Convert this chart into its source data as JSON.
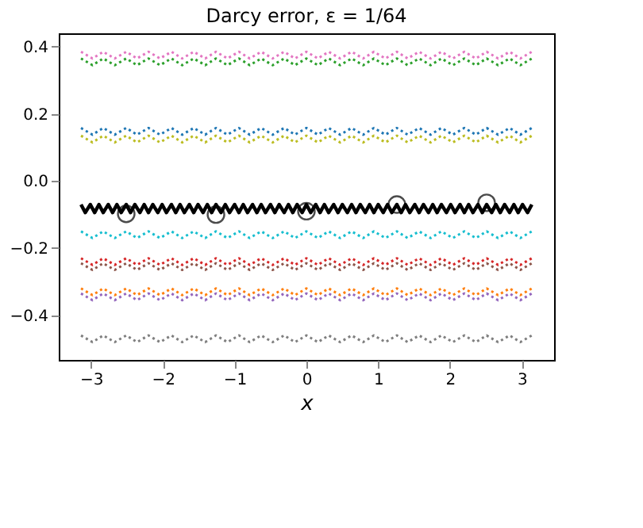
{
  "chart_data": {
    "type": "line",
    "title": "Darcy error, ε = 1/64",
    "xlabel": "x",
    "xlim": [
      -3.45,
      3.45
    ],
    "ylim": [
      -0.533,
      0.44
    ],
    "xticks": [
      {
        "value": -3,
        "label": "−3"
      },
      {
        "value": -2,
        "label": "−2"
      },
      {
        "value": -1,
        "label": "−1"
      },
      0,
      1,
      2,
      3
    ],
    "yticks": [
      {
        "value": -0.4,
        "label": "−0.4"
      },
      {
        "value": -0.2,
        "label": "−0.2"
      },
      {
        "value": 0,
        "label": "0.0"
      },
      0.2,
      0.4
    ],
    "x": [
      -3.14,
      -2.98,
      -2.83,
      -2.67,
      -2.51,
      -2.36,
      -2.2,
      -2.04,
      -1.88,
      -1.73,
      -1.57,
      -1.41,
      -1.26,
      -1.1,
      -0.94,
      -0.79,
      -0.63,
      -0.47,
      -0.31,
      -0.16,
      0,
      0.16,
      0.31,
      0.47,
      0.63,
      0.79,
      0.94,
      1.1,
      1.26,
      1.41,
      1.57,
      1.73,
      1.88,
      2.04,
      2.2,
      2.36,
      2.51,
      2.67,
      2.83,
      2.98,
      3.14
    ],
    "series": [
      {
        "color": "#e377c2",
        "line_style": "dotted",
        "values": [
          0.385,
          0.365,
          0.385,
          0.365,
          0.385,
          0.365,
          0.385,
          0.365,
          0.385,
          0.365,
          0.385,
          0.365,
          0.385,
          0.365,
          0.385,
          0.365,
          0.385,
          0.365,
          0.385,
          0.365,
          0.385,
          0.365,
          0.385,
          0.365,
          0.385,
          0.365,
          0.385,
          0.365,
          0.385,
          0.365,
          0.385,
          0.365,
          0.385,
          0.365,
          0.385,
          0.365,
          0.385,
          0.365,
          0.385,
          0.365,
          0.385
        ]
      },
      {
        "color": "#2ca02c",
        "line_style": "dotted",
        "values": [
          0.365,
          0.345,
          0.365,
          0.345,
          0.365,
          0.345,
          0.365,
          0.345,
          0.365,
          0.345,
          0.365,
          0.345,
          0.365,
          0.345,
          0.365,
          0.345,
          0.365,
          0.345,
          0.365,
          0.345,
          0.365,
          0.345,
          0.365,
          0.345,
          0.365,
          0.345,
          0.365,
          0.345,
          0.365,
          0.345,
          0.365,
          0.345,
          0.365,
          0.345,
          0.365,
          0.345,
          0.365,
          0.345,
          0.365,
          0.345,
          0.365
        ]
      },
      {
        "color": "#1f77b4",
        "line_style": "dotted",
        "values": [
          0.158,
          0.138,
          0.158,
          0.138,
          0.158,
          0.138,
          0.158,
          0.138,
          0.158,
          0.138,
          0.158,
          0.138,
          0.158,
          0.138,
          0.158,
          0.138,
          0.158,
          0.138,
          0.158,
          0.138,
          0.158,
          0.138,
          0.158,
          0.138,
          0.158,
          0.138,
          0.158,
          0.138,
          0.158,
          0.138,
          0.158,
          0.138,
          0.158,
          0.138,
          0.158,
          0.138,
          0.158,
          0.138,
          0.158,
          0.138,
          0.158
        ]
      },
      {
        "color": "#bcbd22",
        "line_style": "dotted",
        "values": [
          0.135,
          0.115,
          0.135,
          0.115,
          0.135,
          0.115,
          0.135,
          0.115,
          0.135,
          0.115,
          0.135,
          0.115,
          0.135,
          0.115,
          0.135,
          0.115,
          0.135,
          0.115,
          0.135,
          0.115,
          0.135,
          0.115,
          0.135,
          0.115,
          0.135,
          0.115,
          0.135,
          0.115,
          0.135,
          0.115,
          0.135,
          0.115,
          0.135,
          0.115,
          0.135,
          0.115,
          0.135,
          0.115,
          0.135,
          0.115,
          0.135
        ]
      },
      {
        "color": "#17becf",
        "line_style": "dotted",
        "values": [
          -0.15,
          -0.17,
          -0.15,
          -0.17,
          -0.15,
          -0.17,
          -0.15,
          -0.17,
          -0.15,
          -0.17,
          -0.15,
          -0.17,
          -0.15,
          -0.17,
          -0.15,
          -0.17,
          -0.15,
          -0.17,
          -0.15,
          -0.17,
          -0.15,
          -0.17,
          -0.15,
          -0.17,
          -0.15,
          -0.17,
          -0.15,
          -0.17,
          -0.15,
          -0.17,
          -0.15,
          -0.17,
          -0.15,
          -0.17,
          -0.15,
          -0.17,
          -0.15,
          -0.17,
          -0.15,
          -0.17,
          -0.15
        ]
      },
      {
        "color": "#d62728",
        "line_style": "dotted",
        "values": [
          -0.23,
          -0.25,
          -0.23,
          -0.25,
          -0.23,
          -0.25,
          -0.23,
          -0.25,
          -0.23,
          -0.25,
          -0.23,
          -0.25,
          -0.23,
          -0.25,
          -0.23,
          -0.25,
          -0.23,
          -0.25,
          -0.23,
          -0.25,
          -0.23,
          -0.25,
          -0.23,
          -0.25,
          -0.23,
          -0.25,
          -0.23,
          -0.25,
          -0.23,
          -0.25,
          -0.23,
          -0.25,
          -0.23,
          -0.25,
          -0.23,
          -0.25,
          -0.23,
          -0.25,
          -0.23,
          -0.25,
          -0.23
        ]
      },
      {
        "color": "#8c564b",
        "line_style": "dotted",
        "values": [
          -0.245,
          -0.265,
          -0.245,
          -0.265,
          -0.245,
          -0.265,
          -0.245,
          -0.265,
          -0.245,
          -0.265,
          -0.245,
          -0.265,
          -0.245,
          -0.265,
          -0.245,
          -0.265,
          -0.245,
          -0.265,
          -0.245,
          -0.265,
          -0.245,
          -0.265,
          -0.245,
          -0.265,
          -0.245,
          -0.265,
          -0.245,
          -0.265,
          -0.245,
          -0.265,
          -0.245,
          -0.265,
          -0.245,
          -0.265,
          -0.245,
          -0.265,
          -0.245,
          -0.265,
          -0.245,
          -0.265,
          -0.245
        ]
      },
      {
        "color": "#ff7f0e",
        "line_style": "dotted",
        "values": [
          -0.32,
          -0.34,
          -0.32,
          -0.34,
          -0.32,
          -0.34,
          -0.32,
          -0.34,
          -0.32,
          -0.34,
          -0.32,
          -0.34,
          -0.32,
          -0.34,
          -0.32,
          -0.34,
          -0.32,
          -0.34,
          -0.32,
          -0.34,
          -0.32,
          -0.34,
          -0.32,
          -0.34,
          -0.32,
          -0.34,
          -0.32,
          -0.34,
          -0.32,
          -0.34,
          -0.32,
          -0.34,
          -0.32,
          -0.34,
          -0.32,
          -0.34,
          -0.32,
          -0.34,
          -0.32,
          -0.34,
          -0.32
        ]
      },
      {
        "color": "#9467bd",
        "line_style": "dotted",
        "values": [
          -0.335,
          -0.355,
          -0.335,
          -0.355,
          -0.335,
          -0.355,
          -0.335,
          -0.355,
          -0.335,
          -0.355,
          -0.335,
          -0.355,
          -0.335,
          -0.355,
          -0.335,
          -0.355,
          -0.335,
          -0.355,
          -0.335,
          -0.355,
          -0.335,
          -0.355,
          -0.335,
          -0.355,
          -0.335,
          -0.355,
          -0.335,
          -0.355,
          -0.335,
          -0.355,
          -0.335,
          -0.355,
          -0.335,
          -0.355,
          -0.335,
          -0.355,
          -0.335,
          -0.355,
          -0.335,
          -0.355,
          -0.335
        ]
      },
      {
        "color": "#7f7f7f",
        "line_style": "dotted",
        "values": [
          -0.46,
          -0.48,
          -0.46,
          -0.48,
          -0.46,
          -0.48,
          -0.46,
          -0.48,
          -0.46,
          -0.48,
          -0.46,
          -0.48,
          -0.46,
          -0.48,
          -0.46,
          -0.48,
          -0.46,
          -0.48,
          -0.46,
          -0.48,
          -0.46,
          -0.48,
          -0.46,
          -0.48,
          -0.46,
          -0.48,
          -0.46,
          -0.48,
          -0.46,
          -0.48,
          -0.46,
          -0.48,
          -0.46,
          -0.48,
          -0.46,
          -0.48,
          -0.46,
          -0.48,
          -0.46,
          -0.48,
          -0.46
        ]
      },
      {
        "color": "#000000",
        "line_style": "solid",
        "x": [
          -3.14,
          -3.08,
          -3.01,
          -2.95,
          -2.89,
          -2.83,
          -2.76,
          -2.7,
          -2.64,
          -2.58,
          -2.51,
          -2.45,
          -2.39,
          -2.32,
          -2.26,
          -2.2,
          -2.14,
          -2.07,
          -2.01,
          -1.95,
          -1.88,
          -1.82,
          -1.76,
          -1.7,
          -1.63,
          -1.57,
          -1.51,
          -1.44,
          -1.38,
          -1.32,
          -1.26,
          -1.19,
          -1.13,
          -1.07,
          -1.0,
          -0.94,
          -0.88,
          -0.82,
          -0.75,
          -0.69,
          -0.63,
          -0.57,
          -0.5,
          -0.44,
          -0.38,
          -0.31,
          -0.25,
          -0.19,
          -0.13,
          -0.06,
          0,
          0.06,
          0.13,
          0.19,
          0.25,
          0.31,
          0.38,
          0.44,
          0.5,
          0.57,
          0.63,
          0.69,
          0.75,
          0.82,
          0.88,
          0.94,
          1.0,
          1.07,
          1.13,
          1.19,
          1.26,
          1.32,
          1.38,
          1.44,
          1.51,
          1.57,
          1.63,
          1.7,
          1.76,
          1.82,
          1.88,
          1.95,
          2.01,
          2.07,
          2.14,
          2.2,
          2.26,
          2.32,
          2.39,
          2.45,
          2.51,
          2.58,
          2.64,
          2.7,
          2.76,
          2.83,
          2.89,
          2.95,
          3.01,
          3.08,
          3.14
        ],
        "values": [
          -0.07,
          -0.094,
          -0.07,
          -0.094,
          -0.07,
          -0.094,
          -0.07,
          -0.094,
          -0.07,
          -0.094,
          -0.07,
          -0.094,
          -0.07,
          -0.094,
          -0.07,
          -0.094,
          -0.07,
          -0.094,
          -0.07,
          -0.094,
          -0.07,
          -0.094,
          -0.07,
          -0.094,
          -0.07,
          -0.094,
          -0.07,
          -0.094,
          -0.07,
          -0.094,
          -0.07,
          -0.094,
          -0.07,
          -0.094,
          -0.07,
          -0.094,
          -0.07,
          -0.094,
          -0.07,
          -0.094,
          -0.07,
          -0.094,
          -0.07,
          -0.094,
          -0.07,
          -0.094,
          -0.07,
          -0.094,
          -0.07,
          -0.094,
          -0.07,
          -0.094,
          -0.07,
          -0.094,
          -0.07,
          -0.094,
          -0.07,
          -0.094,
          -0.07,
          -0.094,
          -0.07,
          -0.094,
          -0.07,
          -0.094,
          -0.07,
          -0.094,
          -0.07,
          -0.094,
          -0.07,
          -0.094,
          -0.07,
          -0.094,
          -0.07,
          -0.094,
          -0.07,
          -0.094,
          -0.07,
          -0.094,
          -0.07,
          -0.094,
          -0.07,
          -0.094,
          -0.07,
          -0.094,
          -0.07,
          -0.094,
          -0.07,
          -0.094,
          -0.07,
          -0.094,
          -0.07,
          -0.094,
          -0.07,
          -0.094,
          -0.07,
          -0.094,
          -0.07,
          -0.094,
          -0.07,
          -0.094,
          -0.07
        ]
      },
      {
        "type": "scatter",
        "color": "#000000",
        "marker": "circle",
        "x": [
          -2.51,
          -1.26,
          0,
          1.26,
          2.51
        ],
        "values": [
          -0.098,
          -0.1,
          -0.09,
          -0.07,
          -0.065
        ]
      }
    ]
  }
}
